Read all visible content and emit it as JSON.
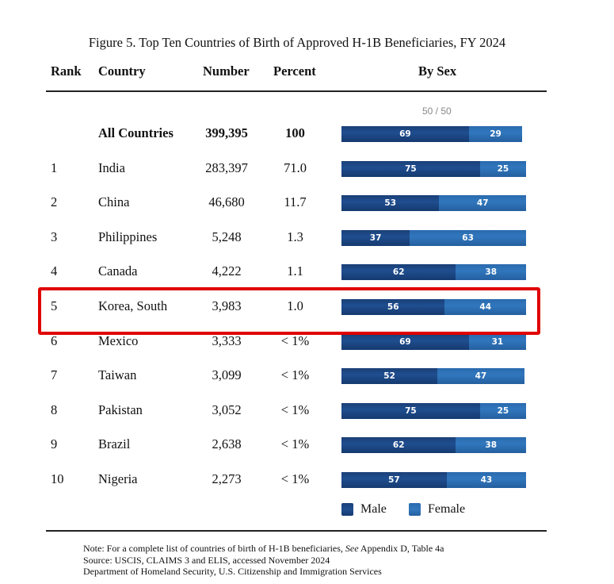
{
  "title": "Figure 5. Top Ten Countries of Birth of Approved H-1B Beneficiaries, FY 2024",
  "headers": {
    "rank": "Rank",
    "country": "Country",
    "number": "Number",
    "percent": "Percent",
    "by_sex": "By Sex"
  },
  "reference_label": "50 / 50",
  "colors": {
    "male": "#1f4e8f",
    "female": "#3177bd",
    "highlight": "#e00000"
  },
  "highlighted_row": "Korea, South",
  "legend": [
    {
      "label": "Male"
    },
    {
      "label": "Female"
    }
  ],
  "notes": [
    "Note: For a complete list of countries of birth of H-1B beneficiaries,",
    "See",
    "Appendix D, Table 4a",
    "Source: USCIS, CLAIMS 3 and ELIS, accessed November 2024",
    "Department of Homeland Security, U.S. Citizenship and Immigration Services"
  ],
  "chart_data": {
    "type": "table",
    "title": "Figure 5. Top Ten Countries of Birth of Approved H-1B Beneficiaries, FY 2024",
    "columns": [
      "Rank",
      "Country",
      "Number",
      "Percent",
      "By Sex"
    ],
    "rows": [
      {
        "rank": "",
        "country": "All Countries",
        "number": "399,395",
        "percent": "100",
        "male": 69,
        "female": 29,
        "bold": true
      },
      {
        "rank": "1",
        "country": "India",
        "number": "283,397",
        "percent": "71.0",
        "male": 75,
        "female": 25
      },
      {
        "rank": "2",
        "country": "China",
        "number": "46,680",
        "percent": "11.7",
        "male": 53,
        "female": 47
      },
      {
        "rank": "3",
        "country": "Philippines",
        "number": "5,248",
        "percent": "1.3",
        "male": 37,
        "female": 63
      },
      {
        "rank": "4",
        "country": "Canada",
        "number": "4,222",
        "percent": "1.1",
        "male": 62,
        "female": 38
      },
      {
        "rank": "5",
        "country": "Korea, South",
        "number": "3,983",
        "percent": "1.0",
        "male": 56,
        "female": 44
      },
      {
        "rank": "6",
        "country": "Mexico",
        "number": "3,333",
        "percent": "< 1%",
        "male": 69,
        "female": 31
      },
      {
        "rank": "7",
        "country": "Taiwan",
        "number": "3,099",
        "percent": "< 1%",
        "male": 52,
        "female": 47
      },
      {
        "rank": "8",
        "country": "Pakistan",
        "number": "3,052",
        "percent": "< 1%",
        "male": 75,
        "female": 25
      },
      {
        "rank": "9",
        "country": "Brazil",
        "number": "2,638",
        "percent": "< 1%",
        "male": 62,
        "female": 38
      },
      {
        "rank": "10",
        "country": "Nigeria",
        "number": "2,273",
        "percent": "< 1%",
        "male": 57,
        "female": 43
      }
    ],
    "series": [
      {
        "name": "Male",
        "values": [
          69,
          75,
          53,
          37,
          62,
          56,
          69,
          52,
          75,
          62,
          57
        ]
      },
      {
        "name": "Female",
        "values": [
          29,
          25,
          47,
          63,
          38,
          44,
          31,
          47,
          25,
          38,
          43
        ]
      }
    ],
    "bar_scale_max": 100,
    "legend_position": "bottom"
  }
}
